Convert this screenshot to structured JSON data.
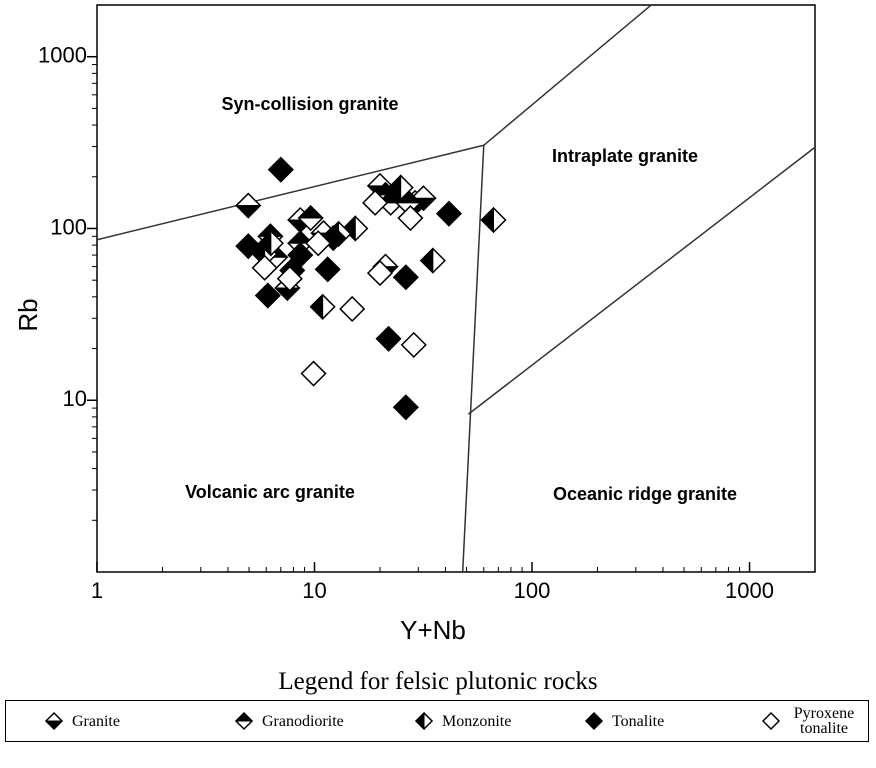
{
  "chart_data": {
    "type": "scatter",
    "x_label": "Y+Nb",
    "y_label": "Rb",
    "log_x": true,
    "log_y": true,
    "xlim": [
      1,
      2000
    ],
    "ylim": [
      1,
      2000
    ],
    "xticks": [
      1,
      10,
      100,
      1000
    ],
    "yticks": [
      10,
      100,
      1000
    ],
    "xminorticks": [
      2,
      3,
      4,
      5,
      6,
      7,
      8,
      9,
      20,
      30,
      40,
      50,
      60,
      70,
      80,
      90,
      200,
      300,
      400,
      500,
      600,
      700,
      800,
      900
    ],
    "yminorticks": [
      2,
      3,
      4,
      5,
      6,
      7,
      8,
      9,
      20,
      30,
      40,
      50,
      60,
      70,
      80,
      90,
      200,
      300,
      400,
      500,
      600,
      700,
      800,
      900
    ],
    "annotations": [
      "Syn-collision granite",
      "Intraplate granite",
      "Volcanic arc granite",
      "Oceanic ridge granite"
    ],
    "boundaries": [
      {
        "x": [
          1,
          60
        ],
        "y": [
          86,
          305
        ]
      },
      {
        "x": [
          60,
          353
        ],
        "y": [
          305,
          2000
        ]
      },
      {
        "x": [
          60,
          48
        ],
        "y": [
          305,
          1
        ]
      },
      {
        "x": [
          51,
          2000
        ],
        "y": [
          8.3,
          297
        ]
      }
    ],
    "legend_title": "Legend for felsic plutonic rocks",
    "series": [
      {
        "name": "Granite",
        "color": "#000000",
        "marker": "half-bottom",
        "x": [
          4.96,
          8.6,
          21.2,
          29,
          31.7,
          20,
          7.5,
          11
        ],
        "values": [
          136,
          112,
          60,
          141,
          150,
          177,
          45,
          94
        ]
      },
      {
        "name": "Granodiorite",
        "color": "#000000",
        "marker": "half-top",
        "x": [
          6.27,
          6.6,
          8.6,
          9.6,
          21.2,
          22.4,
          27
        ],
        "values": [
          90,
          68,
          82,
          115,
          157,
          141,
          141
        ]
      },
      {
        "name": "Monzonite",
        "color": "#000000",
        "marker": "half-left",
        "x": [
          66.5,
          35,
          15.4,
          12.9,
          10.9,
          5.9,
          6.3,
          24.9
        ],
        "values": [
          112,
          65,
          100,
          93,
          35,
          71,
          82,
          173
        ]
      },
      {
        "name": "Tonalite",
        "color": "#000000",
        "marker": "filled",
        "x": [
          7.0,
          41.5,
          26.3,
          21.9,
          26.3,
          6.1,
          11.5,
          4.96,
          8.6,
          7.9,
          12.2
        ],
        "values": [
          220,
          122,
          52,
          22.8,
          9.1,
          40.7,
          57.8,
          78.9,
          70,
          57,
          88
        ]
      },
      {
        "name": "Pyroxene tonalite",
        "color": "#000000",
        "marker": "open",
        "x": [
          14.9,
          9.9,
          28.6,
          20,
          27.6,
          5.9,
          7.7,
          10.4,
          19
        ],
        "values": [
          34,
          14.3,
          21,
          55,
          115,
          59,
          51,
          82,
          141
        ]
      }
    ]
  }
}
